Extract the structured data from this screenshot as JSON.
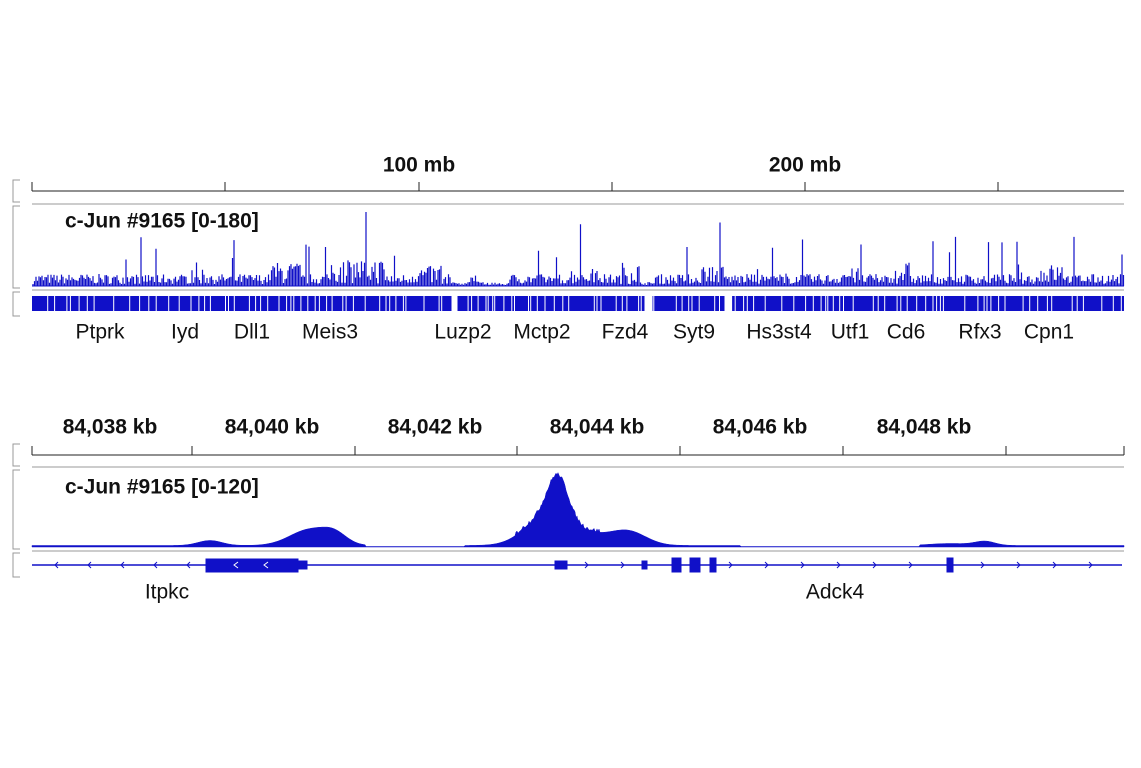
{
  "panels": [
    {
      "ruler": {
        "ticks": [
          "100 mb",
          "200 mb"
        ]
      },
      "track_label": "c-Jun #9165  [0-180]",
      "genes": [
        "Ptprk",
        "Iyd",
        "Dll1",
        "Meis3",
        "Luzp2",
        "Mctp2",
        "Fzd4",
        "Syt9",
        "Hs3st4",
        "Utf1",
        "Cd6",
        "Rfx3",
        "Cpn1"
      ]
    },
    {
      "ruler": {
        "ticks": [
          "84,038 kb",
          "84,040 kb",
          "84,042 kb",
          "84,044 kb",
          "84,046 kb",
          "84,048 kb"
        ]
      },
      "track_label": "c-Jun #9165  [0-120]",
      "genes": [
        "Itpkc",
        "Adck4"
      ]
    }
  ]
}
